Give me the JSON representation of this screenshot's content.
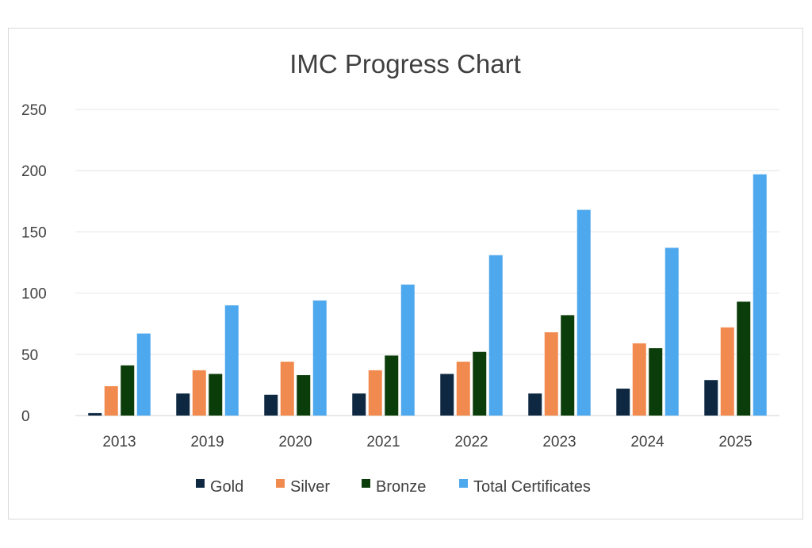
{
  "chart_data": {
    "type": "bar",
    "title": "IMC Progress Chart",
    "xlabel": "",
    "ylabel": "",
    "categories": [
      "2013",
      "2019",
      "2020",
      "2021",
      "2022",
      "2023",
      "2024",
      "2025"
    ],
    "series": [
      {
        "name": "Gold",
        "color": "#0e2841",
        "values": [
          2,
          18,
          17,
          18,
          34,
          18,
          22,
          29
        ]
      },
      {
        "name": "Silver",
        "color": "#f18a4f",
        "values": [
          24,
          37,
          44,
          37,
          44,
          68,
          59,
          72
        ]
      },
      {
        "name": "Bronze",
        "color": "#0b3d0b",
        "values": [
          41,
          34,
          33,
          49,
          52,
          82,
          55,
          93
        ]
      },
      {
        "name": "Total Certificates",
        "color": "#4ea8ee",
        "values": [
          67,
          90,
          94,
          107,
          131,
          168,
          137,
          197
        ]
      }
    ],
    "ylim": [
      0,
      250
    ],
    "yticks": [
      0,
      50,
      100,
      150,
      200,
      250
    ],
    "grid": true,
    "legend_position": "bottom"
  }
}
